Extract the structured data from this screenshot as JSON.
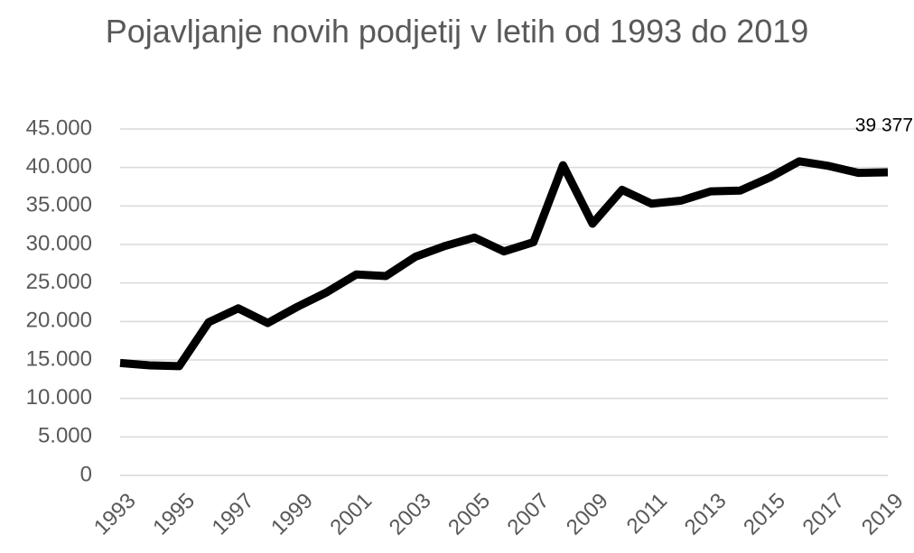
{
  "chart_data": {
    "type": "line",
    "title": "Pojavljanje novih podjetij v letih od 1993 do 2019",
    "x": [
      1993,
      1994,
      1995,
      1996,
      1997,
      1998,
      1999,
      2000,
      2001,
      2002,
      2003,
      2004,
      2005,
      2006,
      2007,
      2008,
      2009,
      2010,
      2011,
      2012,
      2013,
      2014,
      2015,
      2016,
      2017,
      2018,
      2019
    ],
    "values": [
      14600,
      14300,
      14200,
      19900,
      21700,
      19800,
      21900,
      23800,
      26100,
      25900,
      28400,
      29800,
      30900,
      29100,
      30300,
      40300,
      32700,
      37100,
      35300,
      35700,
      36900,
      37000,
      38700,
      40800,
      40200,
      39300,
      39377
    ],
    "value_labels": [
      null,
      null,
      null,
      null,
      null,
      null,
      null,
      null,
      null,
      null,
      null,
      null,
      null,
      null,
      null,
      null,
      null,
      null,
      null,
      null,
      null,
      null,
      null,
      null,
      null,
      null,
      "39 377"
    ],
    "color": "#000000",
    "xlim": [
      1993,
      2019
    ],
    "xticks": [
      1993,
      1995,
      1997,
      1999,
      2001,
      2003,
      2005,
      2007,
      2009,
      2011,
      2013,
      2015,
      2017,
      2019
    ],
    "ylim": [
      0,
      45000
    ],
    "yticks": [
      0,
      {
        "value": 5000,
        "label": "5.000"
      },
      {
        "value": 10000,
        "label": "10.000"
      },
      {
        "value": 15000,
        "label": "15.000"
      },
      {
        "value": 20000,
        "label": "20.000"
      },
      {
        "value": 25000,
        "label": "25.000"
      },
      {
        "value": 30000,
        "label": "30.000"
      },
      {
        "value": 35000,
        "label": "35.000"
      },
      {
        "value": 40000,
        "label": "40.000"
      },
      {
        "value": 45000,
        "label": "45.000"
      }
    ],
    "grid": true
  }
}
